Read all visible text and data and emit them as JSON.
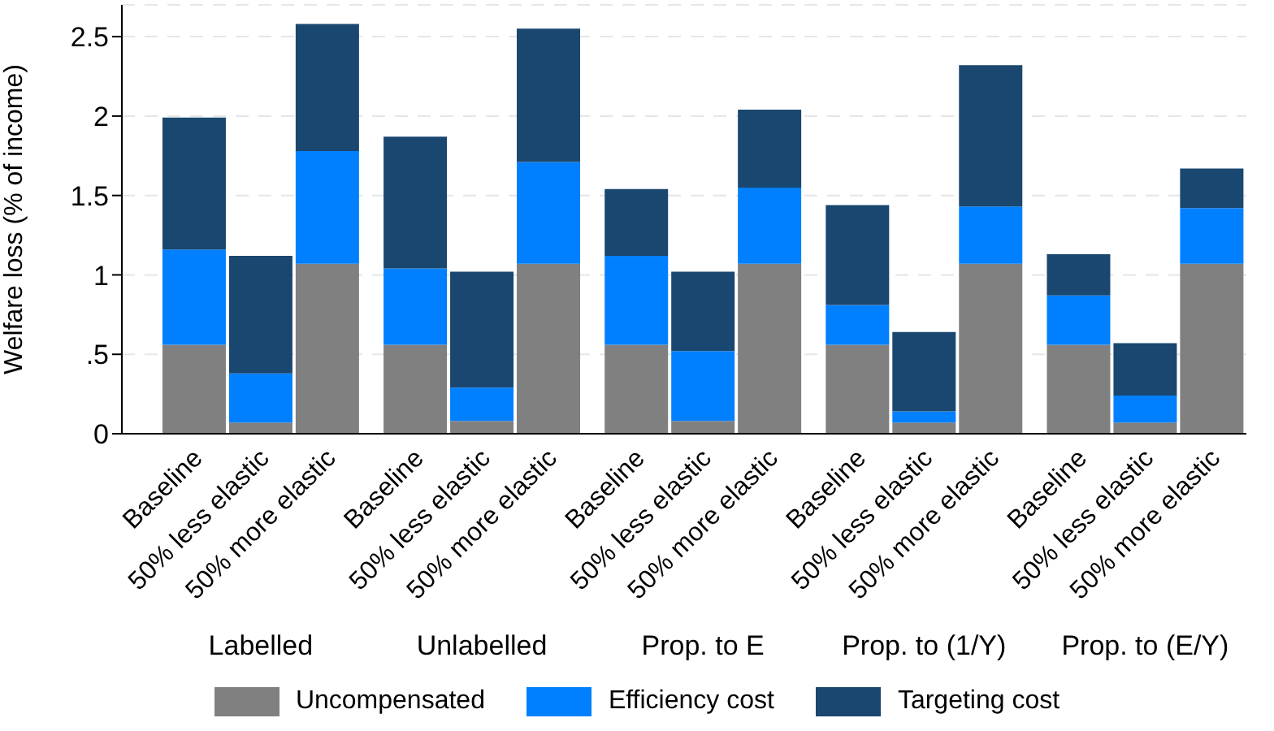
{
  "chart_data": {
    "type": "bar",
    "stacked": true,
    "ylabel": "Welfare loss (% of income)",
    "categories": [
      "Baseline",
      "50% less elastic",
      "50% more elastic",
      "Baseline",
      "50% less elastic",
      "50% more elastic",
      "Baseline",
      "50% less elastic",
      "50% more elastic",
      "Baseline",
      "50% less elastic",
      "50% more elastic",
      "Baseline",
      "50% less elastic",
      "50% more elastic"
    ],
    "annotations": [
      "Labelled",
      "Unlabelled",
      "Prop. to E",
      "Prop. to (1/Y)",
      "Prop. to (E/Y)"
    ],
    "series": [
      {
        "name": "Uncompensated",
        "color": "#808080",
        "values": [
          0.56,
          0.07,
          1.07,
          0.56,
          0.08,
          1.07,
          0.56,
          0.08,
          1.07,
          0.56,
          0.07,
          1.07,
          0.56,
          0.07,
          1.07
        ]
      },
      {
        "name": "Efficiency cost",
        "color": "#0080ff",
        "values": [
          0.6,
          0.31,
          0.71,
          0.48,
          0.21,
          0.64,
          0.56,
          0.44,
          0.48,
          0.25,
          0.07,
          0.36,
          0.31,
          0.17,
          0.35
        ]
      },
      {
        "name": "Targeting cost",
        "color": "#1a476f",
        "values": [
          0.83,
          0.74,
          0.8,
          0.83,
          0.73,
          0.84,
          0.42,
          0.5,
          0.49,
          0.63,
          0.5,
          0.89,
          0.26,
          0.33,
          0.25
        ]
      }
    ],
    "ylim": [
      0,
      2.7
    ],
    "yticks": [
      0,
      {
        "value": 0.5,
        "label": ".5"
      },
      1,
      1.5,
      2,
      2.5
    ],
    "grid": "y",
    "legend": "bottom"
  }
}
